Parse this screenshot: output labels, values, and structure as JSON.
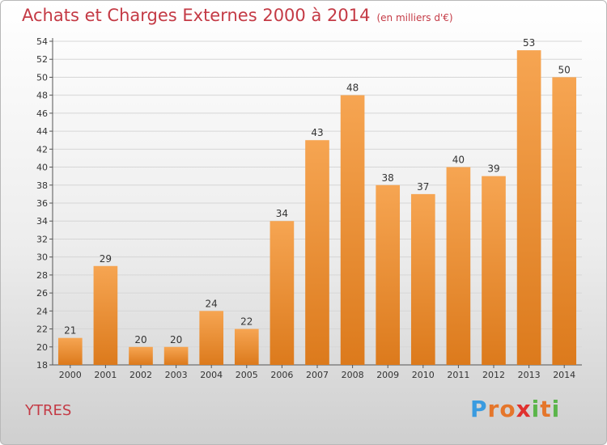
{
  "chart_data": {
    "type": "bar",
    "title": "Achats et Charges Externes 2000 à 2014",
    "subtitle": "(en milliers d'€)",
    "categories": [
      "2000",
      "2001",
      "2002",
      "2003",
      "2004",
      "2005",
      "2006",
      "2007",
      "2008",
      "2009",
      "2010",
      "2011",
      "2012",
      "2013",
      "2014"
    ],
    "values": [
      21,
      29,
      20,
      20,
      24,
      22,
      34,
      43,
      48,
      38,
      37,
      40,
      39,
      53,
      50
    ],
    "ylim": [
      18,
      54
    ],
    "ytick_step": 2,
    "grid": true,
    "bar_color_top": "#f6a552",
    "bar_color_bottom": "#dc7a1c"
  },
  "footer": {
    "commune": "YTRES",
    "logo": [
      "P",
      "r",
      "o",
      "x",
      "i",
      "t",
      "i"
    ],
    "logo_colors": [
      "#3a9be0",
      "#e5762b",
      "#e5762b",
      "#e0312f",
      "#5bb54a",
      "#e5762b",
      "#5bb54a"
    ]
  }
}
